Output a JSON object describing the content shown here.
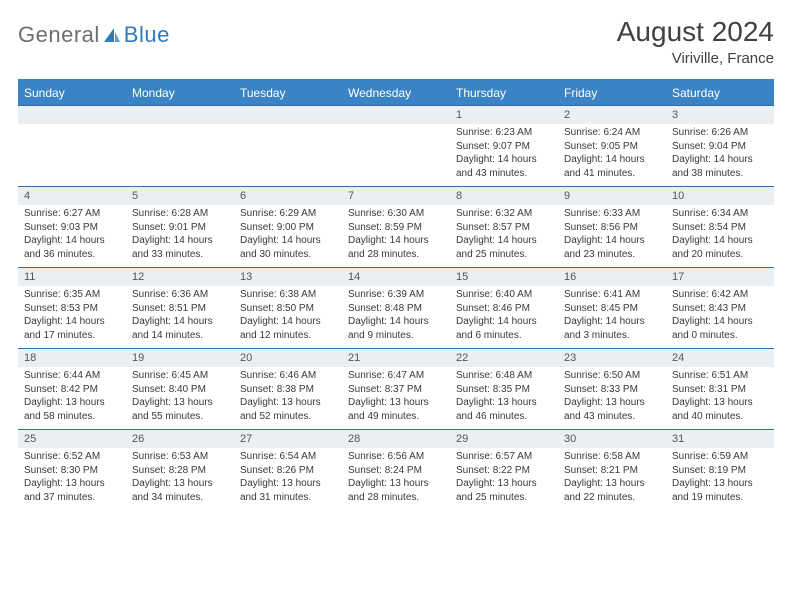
{
  "logo": {
    "word1": "General",
    "word2": "Blue"
  },
  "title": "August 2024",
  "location": "Viriville, France",
  "colors": {
    "header_bg": "#3a84c5",
    "header_text": "#ffffff",
    "daynum_bg": "#eceff2",
    "border": "#2f6fa8",
    "text": "#3a3a3a",
    "title": "#414141",
    "logo_gray": "#6e6e6e",
    "logo_blue": "#2f7bbf"
  },
  "day_names": [
    "Sunday",
    "Monday",
    "Tuesday",
    "Wednesday",
    "Thursday",
    "Friday",
    "Saturday"
  ],
  "weeks": [
    {
      "nums": [
        "",
        "",
        "",
        "",
        "1",
        "2",
        "3"
      ],
      "cells": [
        null,
        null,
        null,
        null,
        {
          "sunrise": "6:23 AM",
          "sunset": "9:07 PM",
          "dl1": "Daylight: 14 hours",
          "dl2": "and 43 minutes."
        },
        {
          "sunrise": "6:24 AM",
          "sunset": "9:05 PM",
          "dl1": "Daylight: 14 hours",
          "dl2": "and 41 minutes."
        },
        {
          "sunrise": "6:26 AM",
          "sunset": "9:04 PM",
          "dl1": "Daylight: 14 hours",
          "dl2": "and 38 minutes."
        }
      ]
    },
    {
      "nums": [
        "4",
        "5",
        "6",
        "7",
        "8",
        "9",
        "10"
      ],
      "cells": [
        {
          "sunrise": "6:27 AM",
          "sunset": "9:03 PM",
          "dl1": "Daylight: 14 hours",
          "dl2": "and 36 minutes."
        },
        {
          "sunrise": "6:28 AM",
          "sunset": "9:01 PM",
          "dl1": "Daylight: 14 hours",
          "dl2": "and 33 minutes."
        },
        {
          "sunrise": "6:29 AM",
          "sunset": "9:00 PM",
          "dl1": "Daylight: 14 hours",
          "dl2": "and 30 minutes."
        },
        {
          "sunrise": "6:30 AM",
          "sunset": "8:59 PM",
          "dl1": "Daylight: 14 hours",
          "dl2": "and 28 minutes."
        },
        {
          "sunrise": "6:32 AM",
          "sunset": "8:57 PM",
          "dl1": "Daylight: 14 hours",
          "dl2": "and 25 minutes."
        },
        {
          "sunrise": "6:33 AM",
          "sunset": "8:56 PM",
          "dl1": "Daylight: 14 hours",
          "dl2": "and 23 minutes."
        },
        {
          "sunrise": "6:34 AM",
          "sunset": "8:54 PM",
          "dl1": "Daylight: 14 hours",
          "dl2": "and 20 minutes."
        }
      ]
    },
    {
      "nums": [
        "11",
        "12",
        "13",
        "14",
        "15",
        "16",
        "17"
      ],
      "cells": [
        {
          "sunrise": "6:35 AM",
          "sunset": "8:53 PM",
          "dl1": "Daylight: 14 hours",
          "dl2": "and 17 minutes."
        },
        {
          "sunrise": "6:36 AM",
          "sunset": "8:51 PM",
          "dl1": "Daylight: 14 hours",
          "dl2": "and 14 minutes."
        },
        {
          "sunrise": "6:38 AM",
          "sunset": "8:50 PM",
          "dl1": "Daylight: 14 hours",
          "dl2": "and 12 minutes."
        },
        {
          "sunrise": "6:39 AM",
          "sunset": "8:48 PM",
          "dl1": "Daylight: 14 hours",
          "dl2": "and 9 minutes."
        },
        {
          "sunrise": "6:40 AM",
          "sunset": "8:46 PM",
          "dl1": "Daylight: 14 hours",
          "dl2": "and 6 minutes."
        },
        {
          "sunrise": "6:41 AM",
          "sunset": "8:45 PM",
          "dl1": "Daylight: 14 hours",
          "dl2": "and 3 minutes."
        },
        {
          "sunrise": "6:42 AM",
          "sunset": "8:43 PM",
          "dl1": "Daylight: 14 hours",
          "dl2": "and 0 minutes."
        }
      ]
    },
    {
      "nums": [
        "18",
        "19",
        "20",
        "21",
        "22",
        "23",
        "24"
      ],
      "cells": [
        {
          "sunrise": "6:44 AM",
          "sunset": "8:42 PM",
          "dl1": "Daylight: 13 hours",
          "dl2": "and 58 minutes."
        },
        {
          "sunrise": "6:45 AM",
          "sunset": "8:40 PM",
          "dl1": "Daylight: 13 hours",
          "dl2": "and 55 minutes."
        },
        {
          "sunrise": "6:46 AM",
          "sunset": "8:38 PM",
          "dl1": "Daylight: 13 hours",
          "dl2": "and 52 minutes."
        },
        {
          "sunrise": "6:47 AM",
          "sunset": "8:37 PM",
          "dl1": "Daylight: 13 hours",
          "dl2": "and 49 minutes."
        },
        {
          "sunrise": "6:48 AM",
          "sunset": "8:35 PM",
          "dl1": "Daylight: 13 hours",
          "dl2": "and 46 minutes."
        },
        {
          "sunrise": "6:50 AM",
          "sunset": "8:33 PM",
          "dl1": "Daylight: 13 hours",
          "dl2": "and 43 minutes."
        },
        {
          "sunrise": "6:51 AM",
          "sunset": "8:31 PM",
          "dl1": "Daylight: 13 hours",
          "dl2": "and 40 minutes."
        }
      ]
    },
    {
      "nums": [
        "25",
        "26",
        "27",
        "28",
        "29",
        "30",
        "31"
      ],
      "cells": [
        {
          "sunrise": "6:52 AM",
          "sunset": "8:30 PM",
          "dl1": "Daylight: 13 hours",
          "dl2": "and 37 minutes."
        },
        {
          "sunrise": "6:53 AM",
          "sunset": "8:28 PM",
          "dl1": "Daylight: 13 hours",
          "dl2": "and 34 minutes."
        },
        {
          "sunrise": "6:54 AM",
          "sunset": "8:26 PM",
          "dl1": "Daylight: 13 hours",
          "dl2": "and 31 minutes."
        },
        {
          "sunrise": "6:56 AM",
          "sunset": "8:24 PM",
          "dl1": "Daylight: 13 hours",
          "dl2": "and 28 minutes."
        },
        {
          "sunrise": "6:57 AM",
          "sunset": "8:22 PM",
          "dl1": "Daylight: 13 hours",
          "dl2": "and 25 minutes."
        },
        {
          "sunrise": "6:58 AM",
          "sunset": "8:21 PM",
          "dl1": "Daylight: 13 hours",
          "dl2": "and 22 minutes."
        },
        {
          "sunrise": "6:59 AM",
          "sunset": "8:19 PM",
          "dl1": "Daylight: 13 hours",
          "dl2": "and 19 minutes."
        }
      ]
    }
  ]
}
